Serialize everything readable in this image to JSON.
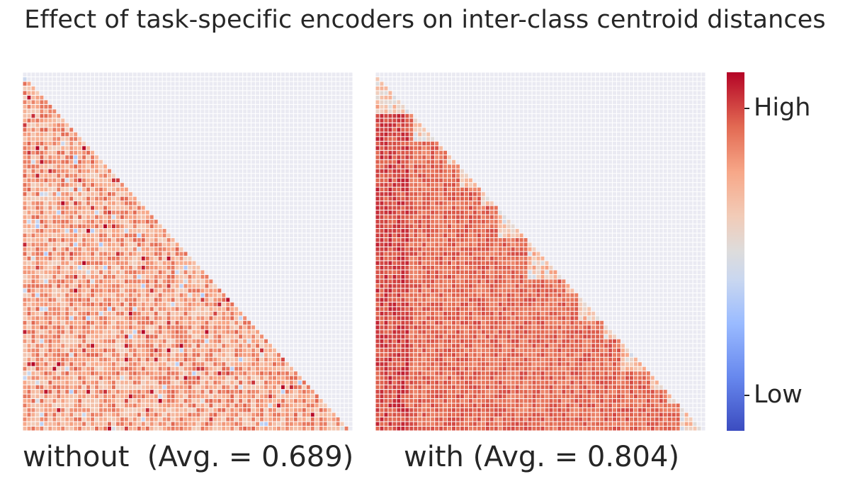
{
  "title": "Effect of task-specific encoders on inter-class centroid distances",
  "chart_data": [
    {
      "type": "heatmap",
      "name": "without",
      "xlabel": "without  (Avg. = 0.689)",
      "mask": "upper-triangle",
      "grid_size": 78,
      "average": 0.689,
      "block_structure": false,
      "colormap": "coolwarm"
    },
    {
      "type": "heatmap",
      "name": "with",
      "xlabel": "with (Avg. = 0.804)",
      "mask": "upper-triangle",
      "grid_size": 78,
      "average": 0.804,
      "block_structure": true,
      "colormap": "coolwarm"
    }
  ],
  "colorbar": {
    "high_label": "High",
    "low_label": "Low",
    "colors": [
      "#3b4cc0",
      "#dddcdc",
      "#b40426"
    ]
  },
  "masked_cell_color": "#eaeaf2"
}
